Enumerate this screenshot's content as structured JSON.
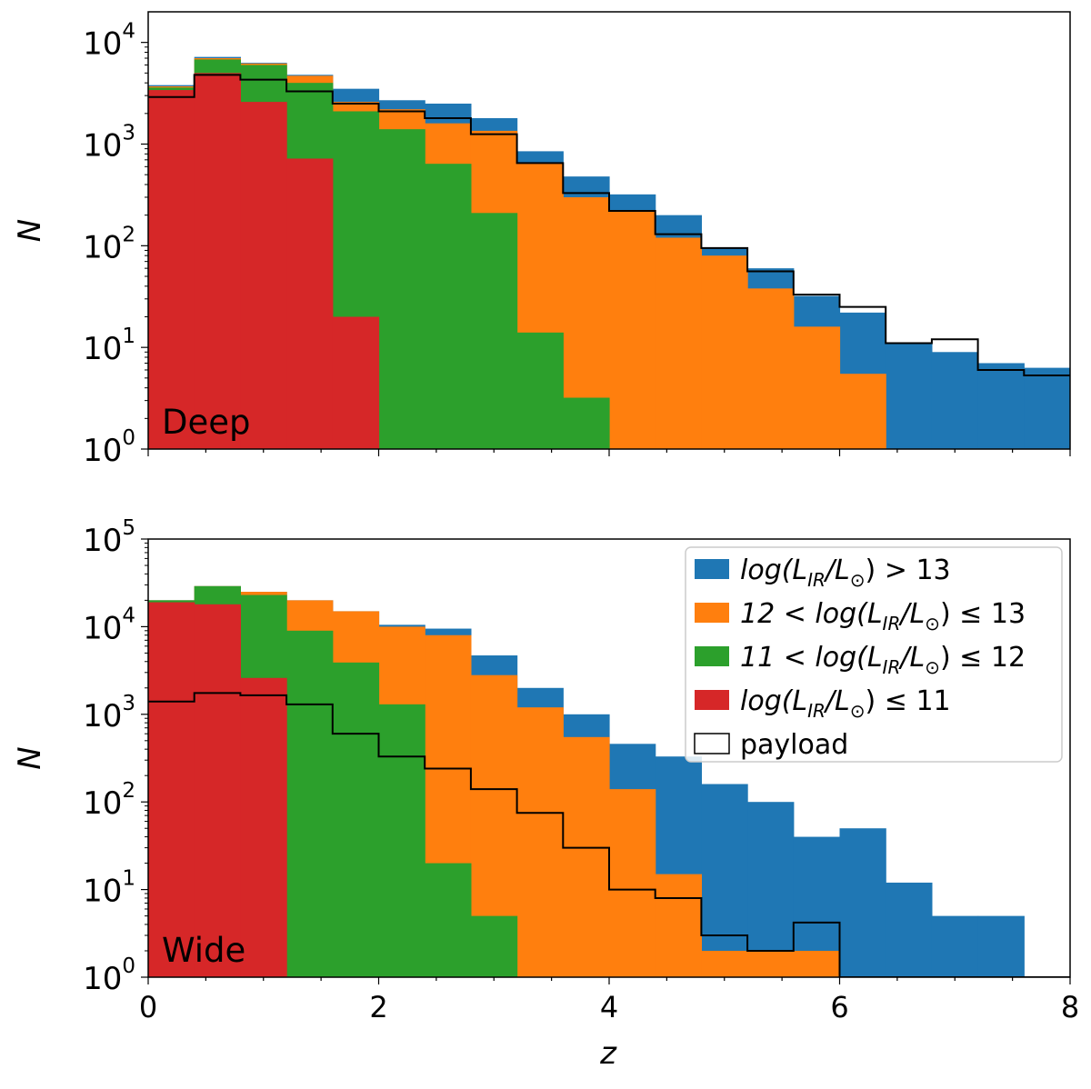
{
  "chart_data": [
    {
      "type": "histogram",
      "panel": "top",
      "annotation": "Deep",
      "xlabel": "z",
      "ylabel": "N",
      "xlim": [
        0,
        8
      ],
      "yscale": "log",
      "ylim": [
        1,
        20000
      ],
      "bin_edges": [
        0,
        0.4,
        0.8,
        1.2,
        1.6,
        2.0,
        2.4,
        2.8,
        3.2,
        3.6,
        4.0,
        4.4,
        4.8,
        5.2,
        5.6,
        6.0,
        6.4,
        6.8,
        7.2,
        7.6,
        8.0
      ],
      "stacking": "overlaid",
      "x_ticks": [
        0,
        2,
        4,
        6,
        8
      ],
      "y_ticks": [
        {
          "exp": "0",
          "value": 1
        },
        {
          "exp": "1",
          "value": 10
        },
        {
          "exp": "2",
          "value": 100
        },
        {
          "exp": "3",
          "value": 1000
        },
        {
          "exp": "4",
          "value": 10000
        }
      ],
      "series": [
        {
          "name": "log(L_IR/L_sun) > 13",
          "color": "#1f77b4",
          "values": [
            3800,
            7200,
            6300,
            4800,
            3500,
            2700,
            2500,
            1800,
            850,
            480,
            320,
            200,
            95,
            60,
            32,
            22,
            11,
            9,
            7,
            6.3
          ]
        },
        {
          "name": "12 < log(L_IR/L_sun) <= 13",
          "color": "#ff7f0e",
          "values": [
            3700,
            7000,
            6200,
            4700,
            2600,
            2200,
            1600,
            1350,
            650,
            300,
            220,
            120,
            80,
            38,
            16,
            5.5,
            0,
            0,
            0,
            0
          ]
        },
        {
          "name": "11 < log(L_IR/L_sun) <= 12",
          "color": "#2ca02c",
          "values": [
            3600,
            6800,
            6000,
            4000,
            2100,
            1400,
            640,
            210,
            14,
            3.2,
            0,
            0,
            0,
            0,
            0,
            0,
            0,
            0,
            0,
            0
          ]
        },
        {
          "name": "log(L_IR/L_sun) <= 11",
          "color": "#d62728",
          "values": [
            3400,
            5000,
            2600,
            720,
            20,
            0,
            0,
            0,
            0,
            0,
            0,
            0,
            0,
            0,
            0,
            0,
            0,
            0,
            0,
            0
          ]
        },
        {
          "name": "payload",
          "color": "#000000",
          "style": "step",
          "values": [
            2900,
            4800,
            4300,
            3300,
            2500,
            2100,
            1800,
            1250,
            650,
            330,
            220,
            130,
            95,
            56,
            33,
            25,
            11,
            12,
            6,
            5.3
          ]
        }
      ]
    },
    {
      "type": "histogram",
      "panel": "bottom",
      "annotation": "Wide",
      "xlabel": "z",
      "ylabel": "N",
      "xlim": [
        0,
        8
      ],
      "yscale": "log",
      "ylim": [
        1,
        100000
      ],
      "bin_edges": [
        0,
        0.4,
        0.8,
        1.2,
        1.6,
        2.0,
        2.4,
        2.8,
        3.2,
        3.6,
        4.0,
        4.4,
        4.8,
        5.2,
        5.6,
        6.0,
        6.4,
        6.8,
        7.2,
        7.6,
        8.0
      ],
      "stacking": "overlaid",
      "x_ticks": [
        0,
        2,
        4,
        6,
        8
      ],
      "y_ticks": [
        {
          "exp": "0",
          "value": 1
        },
        {
          "exp": "1",
          "value": 10
        },
        {
          "exp": "2",
          "value": 100
        },
        {
          "exp": "3",
          "value": 1000
        },
        {
          "exp": "4",
          "value": 10000
        },
        {
          "exp": "5",
          "value": 100000
        }
      ],
      "series": [
        {
          "name": "log(L_IR/L_sun) > 13",
          "color": "#1f77b4",
          "values": [
            20000,
            29000,
            25000,
            20000,
            15000,
            10500,
            9500,
            4700,
            2000,
            1000,
            460,
            330,
            160,
            100,
            40,
            50,
            12,
            5,
            5,
            0
          ]
        },
        {
          "name": "12 < log(L_IR/L_sun) <= 13",
          "color": "#ff7f0e",
          "values": [
            20000,
            29000,
            25000,
            20000,
            15000,
            10000,
            8000,
            2800,
            1200,
            550,
            140,
            15,
            2,
            2,
            2,
            0,
            0,
            0,
            0,
            0
          ]
        },
        {
          "name": "11 < log(L_IR/L_sun) <= 12",
          "color": "#2ca02c",
          "values": [
            20000,
            29000,
            23000,
            9000,
            3900,
            1300,
            20,
            5,
            0,
            0,
            0,
            0,
            0,
            0,
            0,
            0,
            0,
            0,
            0,
            0
          ]
        },
        {
          "name": "log(L_IR/L_sun) <= 11",
          "color": "#d62728",
          "values": [
            19000,
            18000,
            2600,
            0,
            0,
            0,
            0,
            0,
            0,
            0,
            0,
            0,
            0,
            0,
            0,
            0,
            0,
            0,
            0,
            0
          ]
        },
        {
          "name": "payload",
          "color": "#000000",
          "style": "step",
          "values": [
            1400,
            1750,
            1650,
            1300,
            600,
            330,
            240,
            140,
            75,
            30,
            10,
            8,
            3,
            2,
            4.2,
            0,
            0,
            0,
            0,
            0
          ]
        }
      ]
    }
  ],
  "legend": {
    "placement": "top-right of bottom panel",
    "entries": [
      {
        "color": "#1f77b4",
        "pre": "log(L",
        "sub1": "IR",
        "mid": "/L",
        "sub2": "⊙",
        "post": ") > 13"
      },
      {
        "color": "#ff7f0e",
        "pre": "12 < log(L",
        "sub1": "IR",
        "mid": "/L",
        "sub2": "⊙",
        "post": ") ≤ 13"
      },
      {
        "color": "#2ca02c",
        "pre": "11 < log(L",
        "sub1": "IR",
        "mid": "/L",
        "sub2": "⊙",
        "post": ") ≤ 12"
      },
      {
        "color": "#d62728",
        "pre": "log(L",
        "sub1": "IR",
        "mid": "/L",
        "sub2": "⊙",
        "post": ") ≤ 11"
      },
      {
        "color": "#ffffff",
        "outline": "#000000",
        "label": "payload"
      }
    ]
  }
}
